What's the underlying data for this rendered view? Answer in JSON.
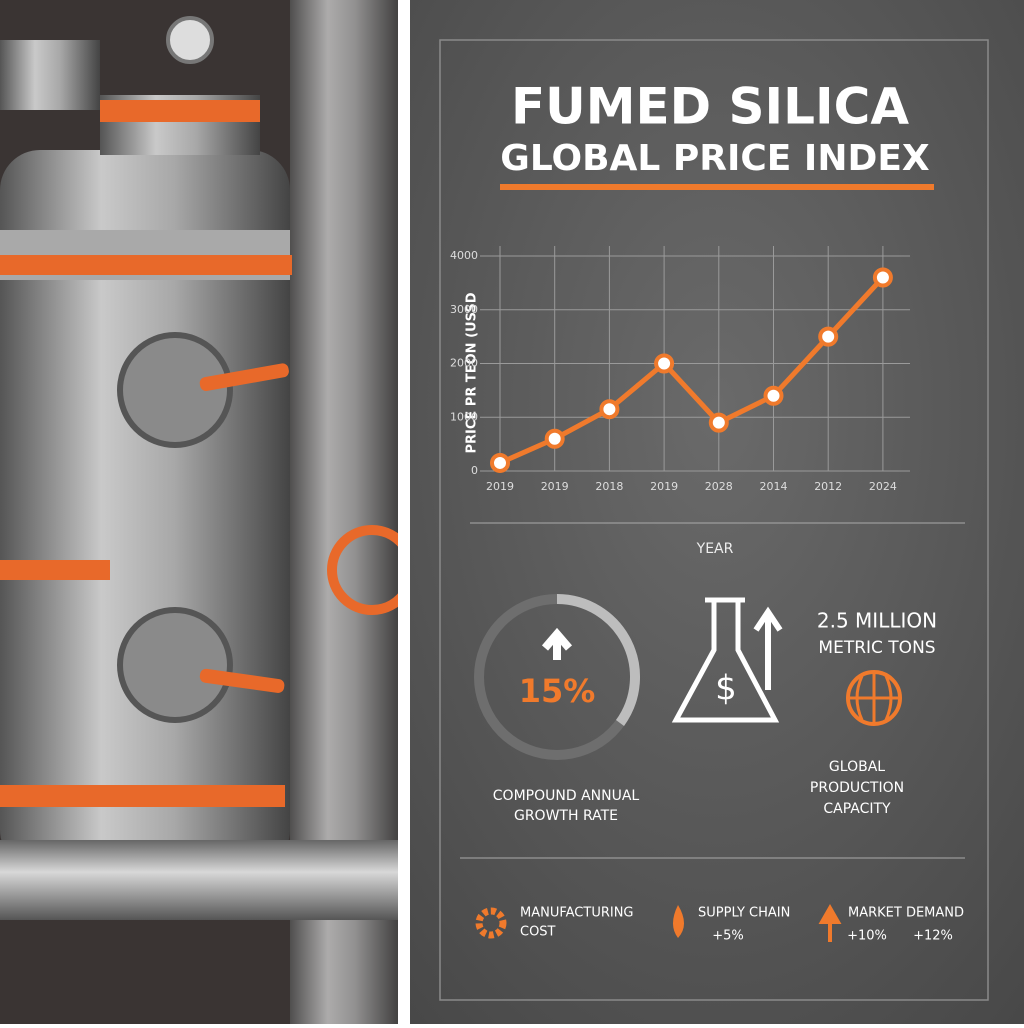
{
  "header": {
    "title": "FUMED SILICA",
    "subtitle": "GLOBAL PRICE INDEX"
  },
  "chart_data": {
    "type": "line",
    "y_label": "PRICE PR TEON (USSD",
    "x_label": "YEAR",
    "categories": [
      "2019",
      "2019",
      "2018",
      "2019",
      "2028",
      "2014",
      "2012",
      "2024"
    ],
    "series": [
      {
        "name": "Price",
        "color": "#f07a2c",
        "values": [
          150,
          600,
          1150,
          2000,
          900,
          1400,
          2500,
          3600
        ]
      }
    ],
    "ylim": [
      0,
      4000
    ],
    "yticks": [
      0,
      1000,
      2000,
      3000,
      4000
    ],
    "grid": true
  },
  "stats": {
    "cagr": "15%",
    "cagr_label": [
      "COMPOUND ANNUAL",
      "GROWTH RATE"
    ],
    "production": [
      "2.5 MILLION",
      "METRIC TONS"
    ],
    "production_label": [
      "GLOBAL",
      "PRODUCTION",
      "CAPACITY"
    ]
  },
  "footer": {
    "items": [
      {
        "label": [
          "MANUFACTURING",
          "COST"
        ]
      },
      {
        "label": [
          "SUPPLY CHAIN"
        ],
        "change": "+5%"
      },
      {
        "label": [
          "MARKET DEMAND"
        ],
        "changes": [
          "+10%",
          "+12%"
        ]
      }
    ]
  }
}
